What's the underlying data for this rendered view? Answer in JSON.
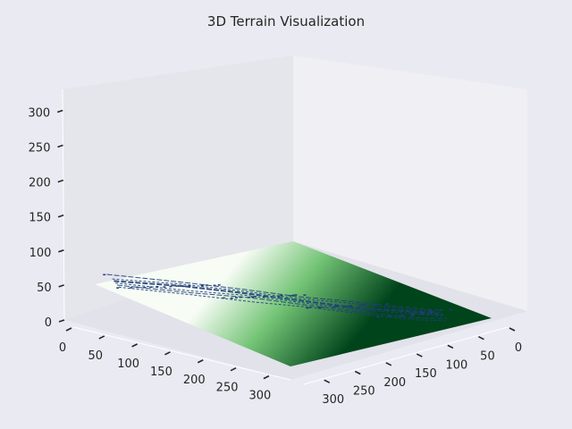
{
  "chart_data": {
    "type": "surface3d",
    "title": "3D Terrain Visualization",
    "xlabel": "",
    "ylabel": "",
    "zlabel": "",
    "x_ticks": [
      0,
      50,
      100,
      150,
      200,
      250,
      300
    ],
    "y_ticks": [
      0,
      50,
      100,
      150,
      200,
      250,
      300
    ],
    "z_ticks": [
      0,
      50,
      100,
      150,
      200,
      250,
      300
    ],
    "xlim": [
      0,
      330
    ],
    "ylim": [
      0,
      330
    ],
    "zlim": [
      0,
      330
    ],
    "grid": false,
    "colormap": "Greens",
    "surface_colors": {
      "low": "#f7fcf5",
      "mid": "#74c476",
      "high": "#00441b"
    },
    "river_color": "#1f3d7a",
    "river_path": [
      [
        300,
        0
      ],
      [
        240,
        60
      ],
      [
        190,
        115
      ],
      [
        150,
        165
      ],
      [
        110,
        215
      ],
      [
        70,
        260
      ],
      [
        40,
        290
      ]
    ]
  },
  "colors": {
    "background": "#eaeaf2",
    "pane_left": "#e5e5ec",
    "pane_right": "#efeff4",
    "pane_floor": "#e2e2ea"
  }
}
